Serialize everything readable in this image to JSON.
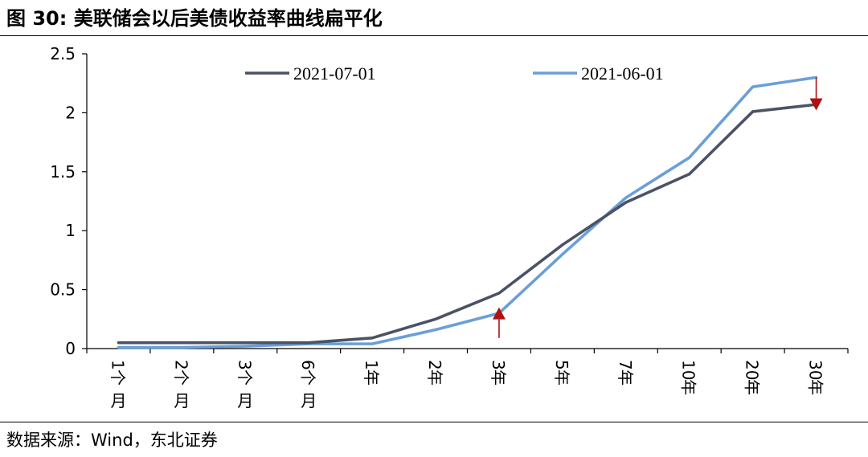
{
  "figure": {
    "title": "图 30: 美联储会以后美债收益率曲线扁平化",
    "source": "数据来源：Wind，东北证券"
  },
  "colors": {
    "series_2021_07_01": "#4a5264",
    "series_2021_06_01": "#6a9fd8",
    "arrow": "#b01010",
    "axis": "#000000"
  },
  "chart_data": {
    "type": "line",
    "title": "",
    "xlabel": "",
    "ylabel": "",
    "categories": [
      "1个月",
      "2个月",
      "3个月",
      "6个月",
      "1年",
      "2年",
      "3年",
      "5年",
      "7年",
      "10年",
      "20年",
      "30年"
    ],
    "ylim": [
      0,
      2.5
    ],
    "yticks": [
      "0",
      "0.5",
      "1",
      "1.5",
      "2",
      "2.5"
    ],
    "grid": false,
    "legend_position": "top",
    "series": [
      {
        "name": "2021-07-01",
        "color_key": "series_2021_07_01",
        "values": [
          0.05,
          0.05,
          0.05,
          0.05,
          0.09,
          0.25,
          0.47,
          0.88,
          1.24,
          1.48,
          2.01,
          2.07
        ]
      },
      {
        "name": "2021-06-01",
        "color_key": "series_2021_06_01",
        "values": [
          0.01,
          0.01,
          0.02,
          0.04,
          0.04,
          0.16,
          0.3,
          0.8,
          1.28,
          1.62,
          2.22,
          2.3
        ]
      }
    ],
    "annotations": [
      {
        "type": "arrow-up",
        "category": "3年",
        "from": 0.09,
        "to": 0.35
      },
      {
        "type": "arrow-down",
        "category": "30年",
        "from": 2.3,
        "to": 2.02
      }
    ]
  }
}
